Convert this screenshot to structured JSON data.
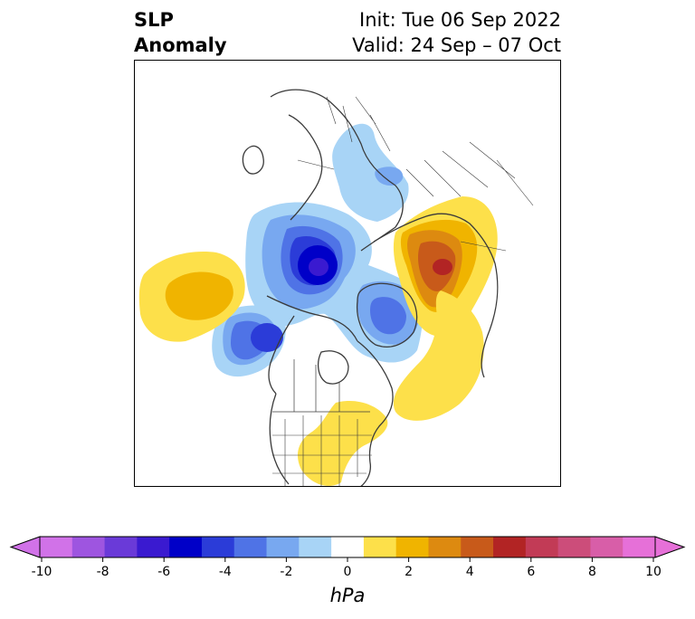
{
  "title": {
    "left_line1": "SLP",
    "left_line2": "Anomaly",
    "right_line1": "Init: Tue 06 Sep 2022",
    "right_line2": "Valid: 24 Sep – 07 Oct"
  },
  "colorbar": {
    "unit_label": "hPa",
    "tick_labels": [
      "-10",
      "-8",
      "-6",
      "-4",
      "-2",
      "0",
      "2",
      "4",
      "6",
      "8",
      "10"
    ],
    "levels": [
      -10,
      -9,
      -8,
      -7,
      -6,
      -5,
      -4,
      -3,
      -2,
      -1,
      1,
      2,
      3,
      4,
      5,
      6,
      7,
      8,
      9,
      10
    ],
    "colors": [
      "#d172e8",
      "#9e55e0",
      "#6a3ad8",
      "#3a1ad0",
      "#0000c8",
      "#2b3cd8",
      "#4f73e6",
      "#78a8f0",
      "#a8d4f6",
      "#ffffff",
      "#fde04a",
      "#f0b400",
      "#dd8a10",
      "#c85a1a",
      "#b22424",
      "#c23b56",
      "#cc4d7a",
      "#d85ea8",
      "#e670d8"
    ],
    "extend": "both"
  },
  "map": {
    "projection": "north-polar-stereographic",
    "anomaly_features": [
      {
        "name": "Negative center over Arctic / North Pole",
        "peak_hpa": -6
      },
      {
        "name": "Negative center over Gulf of Alaska",
        "peak_hpa": -5
      },
      {
        "name": "Negative center over Greenland / Baffin",
        "peak_hpa": -4
      },
      {
        "name": "Negative center over Europe / Scandinavia",
        "peak_hpa": -2
      },
      {
        "name": "Positive center over North Pacific",
        "peak_hpa": 2
      },
      {
        "name": "Positive center over western Siberia",
        "peak_hpa": 5
      },
      {
        "name": "Positive anomaly over western Atlantic",
        "peak_hpa": 1
      },
      {
        "name": "Positive anomaly over southeastern United States",
        "peak_hpa": 1
      }
    ]
  }
}
